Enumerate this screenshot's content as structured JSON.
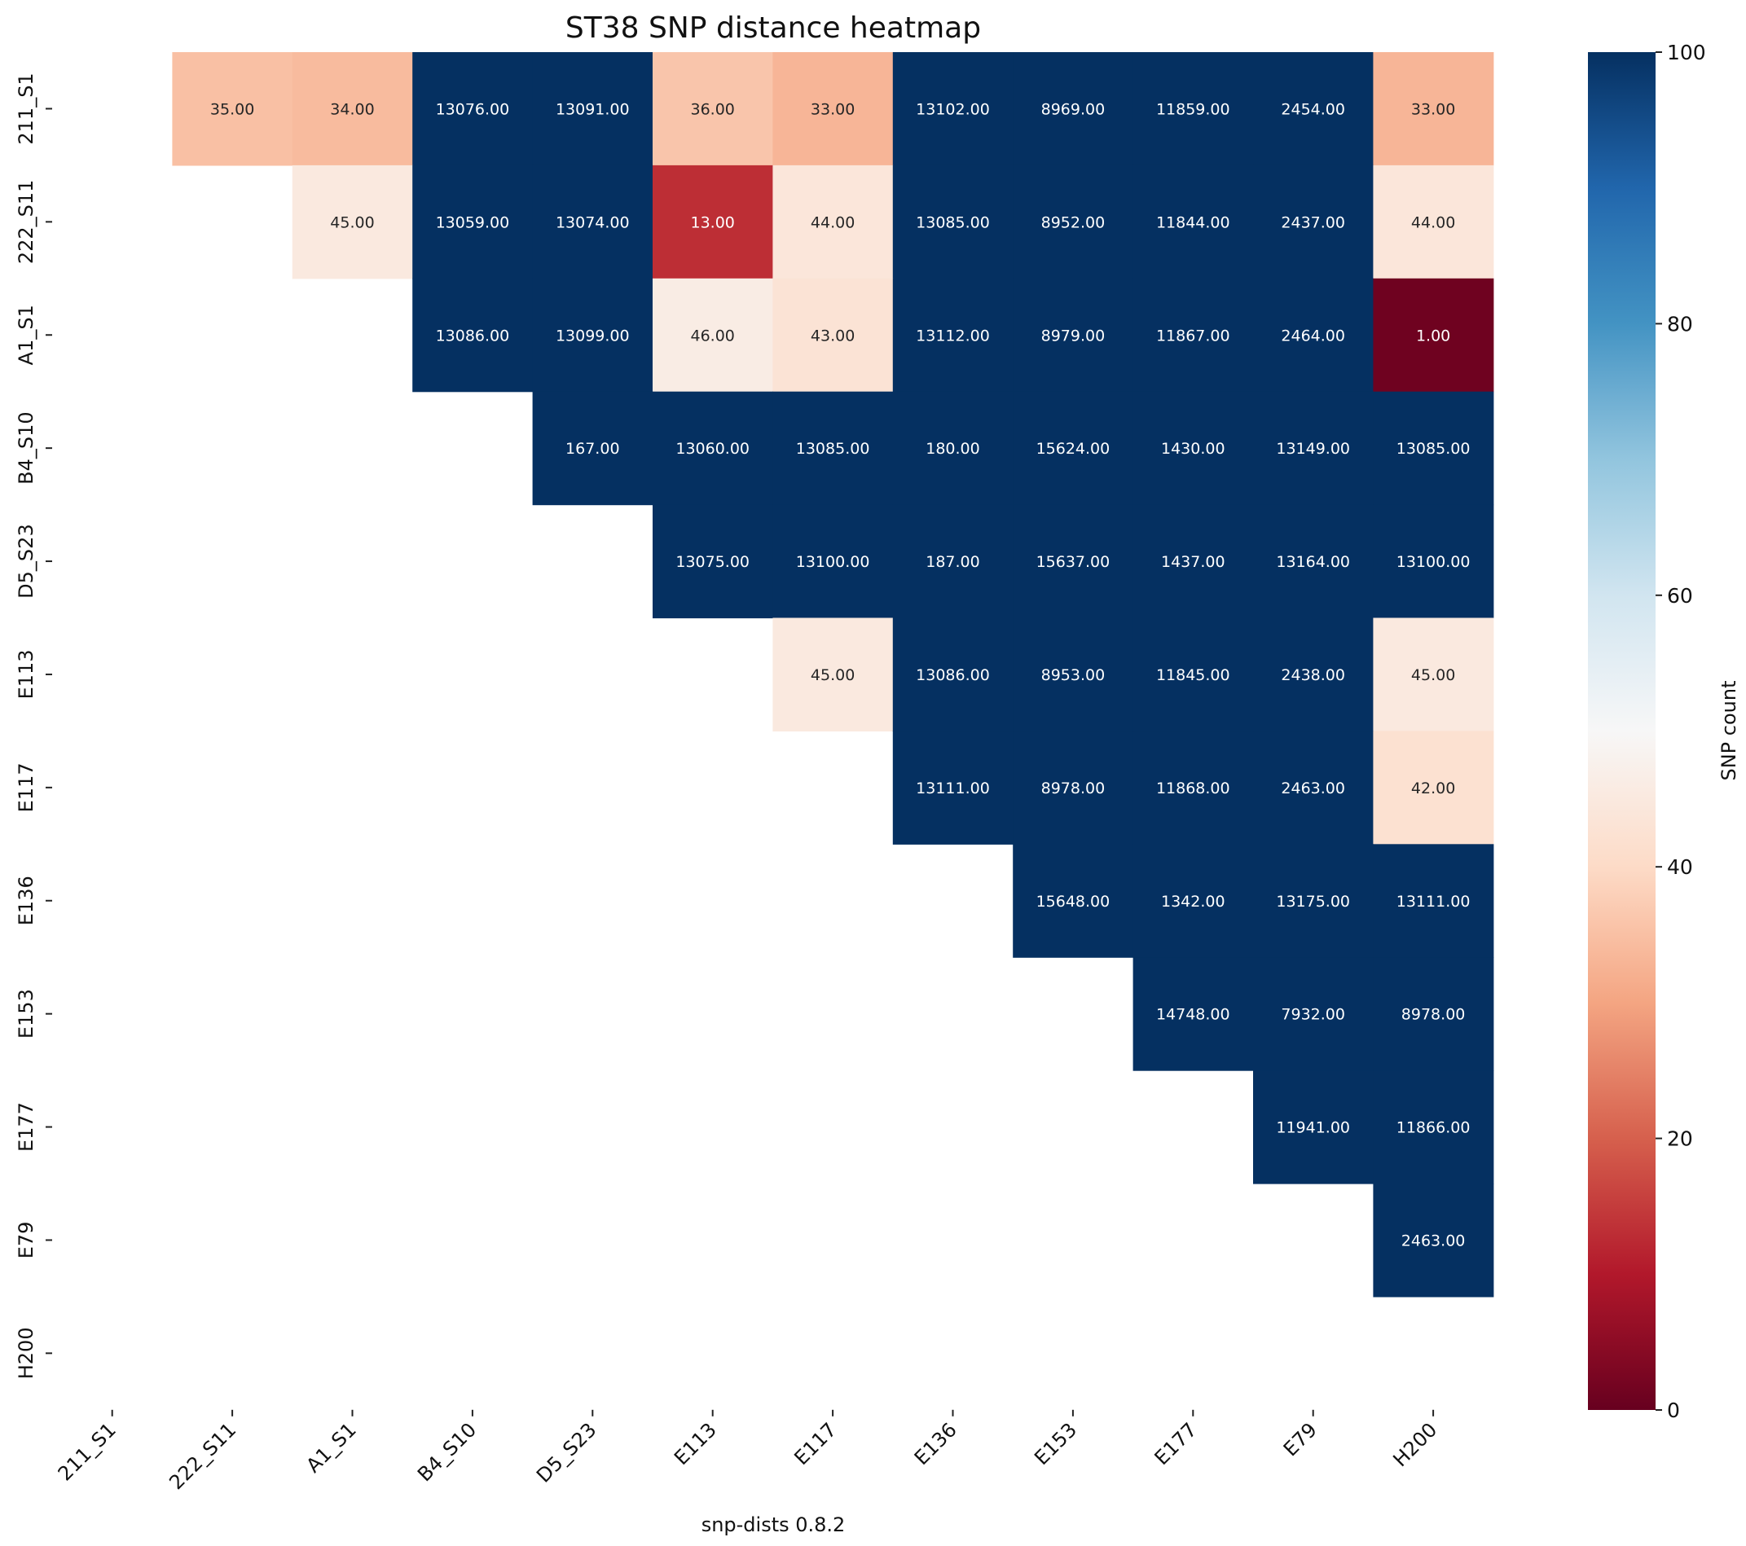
{
  "chart_data": {
    "type": "heatmap",
    "title": "ST38 SNP distance heatmap",
    "xlabel": "snp-dists 0.8.2",
    "ylabel": "",
    "colorbar_label": "SNP count",
    "colormap": "RdBu",
    "vmin": 0,
    "vmax": 100,
    "colorbar_ticks": [
      "0",
      "20",
      "40",
      "60",
      "80",
      "100"
    ],
    "mask": "lower triangle and diagonal hidden",
    "value_format": "2 decimals",
    "row_labels": [
      "211_S1",
      "222_S11",
      "A1_S1",
      "B4_S10",
      "D5_S23",
      "E113",
      "E117",
      "E136",
      "E153",
      "E177",
      "E79",
      "H200"
    ],
    "col_labels": [
      "211_S1",
      "222_S11",
      "A1_S1",
      "B4_S10",
      "D5_S23",
      "E113",
      "E117",
      "E136",
      "E153",
      "E177",
      "E79",
      "H200"
    ],
    "matrix": [
      [
        null,
        35,
        34,
        13076,
        13091,
        36,
        33,
        13102,
        8969,
        11859,
        2454,
        33
      ],
      [
        null,
        null,
        45,
        13059,
        13074,
        13,
        44,
        13085,
        8952,
        11844,
        2437,
        44
      ],
      [
        null,
        null,
        null,
        13086,
        13099,
        46,
        43,
        13112,
        8979,
        11867,
        2464,
        1
      ],
      [
        null,
        null,
        null,
        null,
        167,
        13060,
        13085,
        180,
        15624,
        1430,
        13149,
        13085
      ],
      [
        null,
        null,
        null,
        null,
        null,
        13075,
        13100,
        187,
        15637,
        1437,
        13164,
        13100
      ],
      [
        null,
        null,
        null,
        null,
        null,
        null,
        45,
        13086,
        8953,
        11845,
        2438,
        45
      ],
      [
        null,
        null,
        null,
        null,
        null,
        null,
        null,
        13111,
        8978,
        11868,
        2463,
        42
      ],
      [
        null,
        null,
        null,
        null,
        null,
        null,
        null,
        null,
        15648,
        1342,
        13175,
        13111
      ],
      [
        null,
        null,
        null,
        null,
        null,
        null,
        null,
        null,
        null,
        14748,
        7932,
        8978
      ],
      [
        null,
        null,
        null,
        null,
        null,
        null,
        null,
        null,
        null,
        null,
        11941,
        11866
      ],
      [
        null,
        null,
        null,
        null,
        null,
        null,
        null,
        null,
        null,
        null,
        null,
        2463
      ],
      [
        null,
        null,
        null,
        null,
        null,
        null,
        null,
        null,
        null,
        null,
        null,
        null
      ]
    ]
  }
}
